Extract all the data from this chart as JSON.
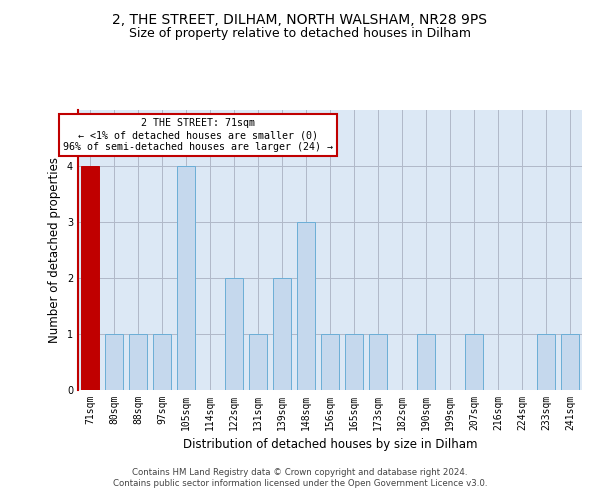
{
  "title1": "2, THE STREET, DILHAM, NORTH WALSHAM, NR28 9PS",
  "title2": "Size of property relative to detached houses in Dilham",
  "xlabel": "Distribution of detached houses by size in Dilham",
  "ylabel": "Number of detached properties",
  "categories": [
    "71sqm",
    "80sqm",
    "88sqm",
    "97sqm",
    "105sqm",
    "114sqm",
    "122sqm",
    "131sqm",
    "139sqm",
    "148sqm",
    "156sqm",
    "165sqm",
    "173sqm",
    "182sqm",
    "190sqm",
    "199sqm",
    "207sqm",
    "216sqm",
    "224sqm",
    "233sqm",
    "241sqm"
  ],
  "values": [
    4,
    1,
    1,
    1,
    4,
    0,
    2,
    1,
    2,
    3,
    1,
    1,
    1,
    0,
    1,
    0,
    1,
    0,
    0,
    1,
    1
  ],
  "highlight_index": 0,
  "bar_color": "#c5d8ed",
  "bar_edge_color": "#6baed6",
  "highlight_color": "#c00000",
  "highlight_edge_color": "#c00000",
  "annotation_text": "2 THE STREET: 71sqm\n← <1% of detached houses are smaller (0)\n96% of semi-detached houses are larger (24) →",
  "annotation_box_color": "white",
  "annotation_box_edge_color": "#c00000",
  "ylim": [
    0,
    5
  ],
  "yticks": [
    0,
    1,
    2,
    3,
    4
  ],
  "grid_color": "#b0b8c8",
  "bg_color": "#dce8f5",
  "footer_text": "Contains HM Land Registry data © Crown copyright and database right 2024.\nContains public sector information licensed under the Open Government Licence v3.0.",
  "title1_fontsize": 10,
  "title2_fontsize": 9,
  "tick_fontsize": 7,
  "ylabel_fontsize": 8.5,
  "xlabel_fontsize": 8.5,
  "bar_width": 0.75
}
